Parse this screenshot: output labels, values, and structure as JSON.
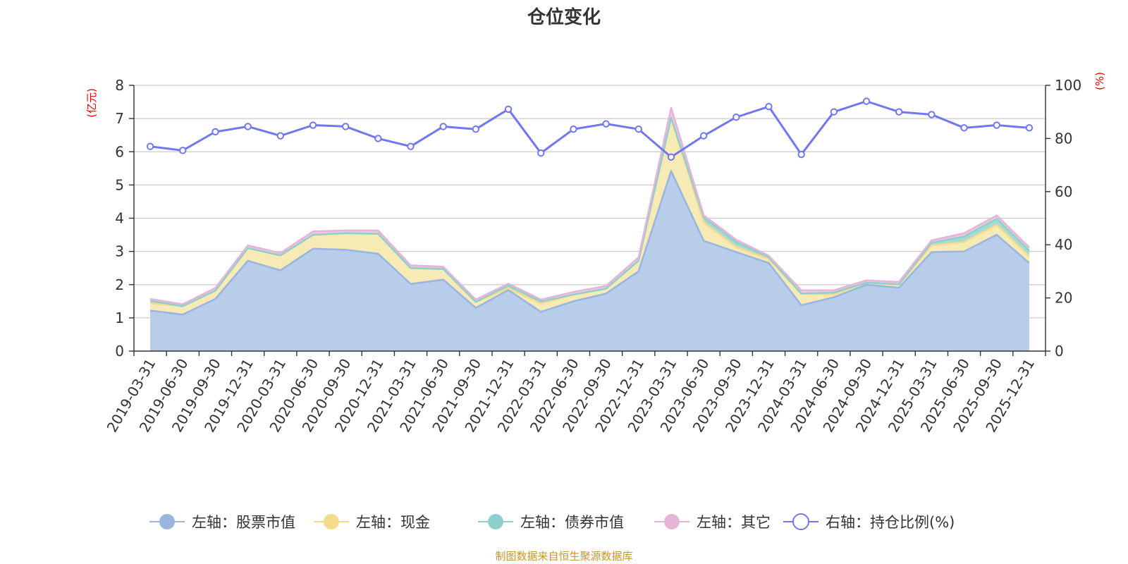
{
  "chart_data": {
    "type": "area",
    "title": "仓位变化",
    "left_unit": "(亿元)",
    "right_unit": "(%)",
    "categories": [
      "2019-03-31",
      "2019-06-30",
      "2019-09-30",
      "2019-12-31",
      "2020-03-31",
      "2020-06-30",
      "2020-09-30",
      "2020-12-31",
      "2021-03-31",
      "2021-06-30",
      "2021-09-30",
      "2021-12-31",
      "2022-03-31",
      "2022-06-30",
      "2022-09-30",
      "2022-12-31",
      "2023-03-31",
      "2023-06-30",
      "2023-09-30",
      "2023-12-31",
      "2024-03-31",
      "2024-06-30",
      "2024-09-30",
      "2024-12-31",
      "2025-03-31",
      "2025-06-30",
      "2025-09-30",
      "2025-12-31"
    ],
    "y_left": {
      "min": 0,
      "max": 8,
      "ticks": [
        "0",
        "1",
        "2",
        "3",
        "4",
        "5",
        "6",
        "7",
        "8"
      ]
    },
    "y_right": {
      "min": 0,
      "max": 100,
      "ticks": [
        "0",
        "20",
        "40",
        "60",
        "80",
        "100"
      ]
    },
    "stacked_series": [
      {
        "name": "左轴：股票市值",
        "color": "#9ab5e0",
        "fill": "#b8cdea",
        "values": [
          1.22,
          1.1,
          1.57,
          2.72,
          2.43,
          3.08,
          3.05,
          2.93,
          2.02,
          2.15,
          1.3,
          1.84,
          1.18,
          1.5,
          1.73,
          2.4,
          5.42,
          3.32,
          2.98,
          2.65,
          1.38,
          1.62,
          2.0,
          1.91,
          2.98,
          3.0,
          3.5,
          2.65
        ]
      },
      {
        "name": "左轴：现金",
        "color": "#f5dc8c",
        "fill": "#f8eab5",
        "values": [
          0.22,
          0.25,
          0.25,
          0.38,
          0.45,
          0.42,
          0.5,
          0.6,
          0.48,
          0.32,
          0.18,
          0.05,
          0.25,
          0.2,
          0.15,
          0.32,
          1.6,
          0.55,
          0.15,
          0.12,
          0.35,
          0.08,
          0.06,
          0.1,
          0.2,
          0.28,
          0.3,
          0.2
        ]
      },
      {
        "name": "左轴：债券市值",
        "color": "#8fd0cc",
        "fill": "#a6dad6",
        "values": [
          0.07,
          0,
          0,
          0,
          0,
          0,
          0,
          0,
          0,
          0,
          0,
          0.09,
          0.06,
          0,
          0,
          0,
          0,
          0.15,
          0.15,
          0.05,
          0,
          0.06,
          0,
          0,
          0.08,
          0.17,
          0.18,
          0.17
        ]
      },
      {
        "name": "左轴：其它",
        "color": "#e6b4d8",
        "fill": "#f0cbe3",
        "values": [
          0.06,
          0.06,
          0.08,
          0.08,
          0.07,
          0.1,
          0.08,
          0.1,
          0.08,
          0.07,
          0.07,
          0.05,
          0.06,
          0.08,
          0.08,
          0.1,
          0.3,
          0.07,
          0.07,
          0.05,
          0.1,
          0.07,
          0.07,
          0.07,
          0.07,
          0.1,
          0.1,
          0.1
        ]
      }
    ],
    "ratio_series": {
      "name": "右轴：持仓比例(%)",
      "color": "#7177f0",
      "values": [
        77,
        75.5,
        82.5,
        84.5,
        81,
        85,
        84.5,
        80,
        77,
        84.5,
        83.5,
        91,
        74.5,
        83.5,
        85.5,
        83.5,
        73,
        81,
        88,
        92,
        74,
        90,
        94,
        90,
        89,
        84,
        85,
        84
      ]
    },
    "legend_position": "bottom"
  },
  "source_note": "制图数据来自恒生聚源数据库"
}
